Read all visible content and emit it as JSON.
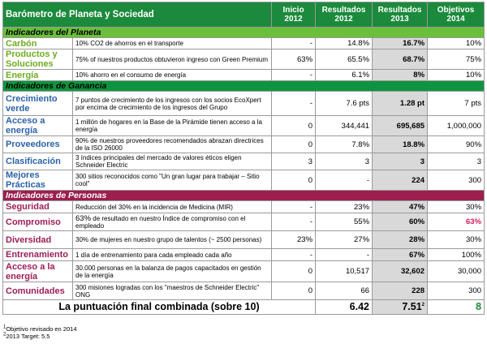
{
  "header": {
    "title": "Barómetro de Planeta y Sociedad",
    "col1": [
      "Inicio",
      "2012"
    ],
    "col2": [
      "Resultados",
      "2012"
    ],
    "col3": [
      "Resultados",
      "2013"
    ],
    "col4": [
      "Objetivos",
      "2014"
    ]
  },
  "sections": {
    "planeta": "Indicadores del Planeta",
    "ganancia": "Indicadores de Ganancia",
    "personas": "Indicadores de Personas"
  },
  "rows": [
    {
      "name": "Carbón",
      "desc": "10% CO2 de ahorros en el transporte",
      "inicio": "-",
      "r2012": "14.8%",
      "r2013": "16.7%",
      "obj": "10%"
    },
    {
      "name": "Productos y Soluciones",
      "desc": "75% of nuestros productos obtuvieron ingreso con Green Premium",
      "inicio": "63%",
      "r2012": "65.5%",
      "r2013": "68.7%",
      "obj": "75%"
    },
    {
      "name": "Energía",
      "desc": "10% ahorro en el consumo de energía",
      "inicio": "-",
      "r2012": "6.1%",
      "r2013": "8%",
      "obj": "10%"
    },
    {
      "name": "Crecimiento verde",
      "desc": "7 puntos de crecimiento de los ingresos con los socios EcoXpert por encima de crecimiento de los ingresos del Grupo",
      "inicio": "-",
      "r2012": "7.6 pts",
      "r2013": "1.28 pt",
      "obj": "7 pts"
    },
    {
      "name": "Acceso a energía",
      "desc": "1 millón de hogares en la Base de la Pirámide tienen acceso a la energía",
      "inicio": "0",
      "r2012": "344,441",
      "r2013": "695,685",
      "obj": "1,000,000"
    },
    {
      "name": "Proveedores",
      "desc": "90% de nuestros proveedores recomendados abrazan directrices de la ISO 26000",
      "inicio": "0",
      "r2012": "7.8%",
      "r2013": "18.8%",
      "obj": "90%"
    },
    {
      "name": "Clasificación",
      "desc": "3 índices principales del mercado de valores éticos eligen Schneider Electric",
      "inicio": "3",
      "r2012": "3",
      "r2013": "3",
      "obj": "3"
    },
    {
      "name": "Mejores Prácticas",
      "desc": "300 sitios reconocidos como \"Un gran lugar para trabajar – Sitio cool\"",
      "inicio": "0",
      "r2012": "-",
      "r2013": "224",
      "obj": "300"
    },
    {
      "name": "Seguridad",
      "desc": "Reducción del 30% en la incidencia de Medicina (MIR)",
      "inicio": "-",
      "r2012": "23%",
      "r2013": "47%",
      "obj": "30%"
    },
    {
      "name": "Compromiso",
      "desc_lead": "63%",
      "desc": " de resultado en nuestro Índice de compromiso con el empleado",
      "inicio": "-",
      "r2012": "55%",
      "r2013": "60%",
      "obj": "63%"
    },
    {
      "name": "Diversidad",
      "desc": "30% de mujeres en nuestro grupo de talentos (~ 2500 personas)",
      "inicio": "23%",
      "r2012": "27%",
      "r2013": "28%",
      "obj": "30%"
    },
    {
      "name": "Entrenamiento",
      "desc": "1 día de entrenamiento para cada empleado cada año",
      "inicio": "-",
      "r2012": "-",
      "r2013": "67%",
      "obj": "100%"
    },
    {
      "name": "Acceso a la energía",
      "desc": "30.000 personas en la balanza de pagos capacitados en gestión de la energía",
      "inicio": "0",
      "r2012": "10,517",
      "r2013": "32,602",
      "obj": "30,000"
    },
    {
      "name": "Comunidades",
      "desc": "300 misiones logradas con los \"maestros de Schneider Electric\" ONG",
      "inicio": "0",
      "r2012": "66",
      "r2013": "228",
      "obj": "300"
    }
  ],
  "total": {
    "label": "La puntuación final combinada (sobre 10)",
    "r2012": "6.42",
    "r2013": "7.51",
    "r2013_sup": "2",
    "obj": "8"
  },
  "footnotes": {
    "f1_sup": "1",
    "f1": "Objetivo revisado en 2014",
    "f2_sup": "2",
    "f2": "2013 Target: 5.5"
  },
  "colors": {
    "header_green": "#1c8a3c",
    "lime_text": "#6cad1e",
    "blue_text": "#2b62a8",
    "purple_text": "#9c1e57",
    "purple_band": "#9b1f4f",
    "highlight_gray": "#d9d9d9"
  }
}
